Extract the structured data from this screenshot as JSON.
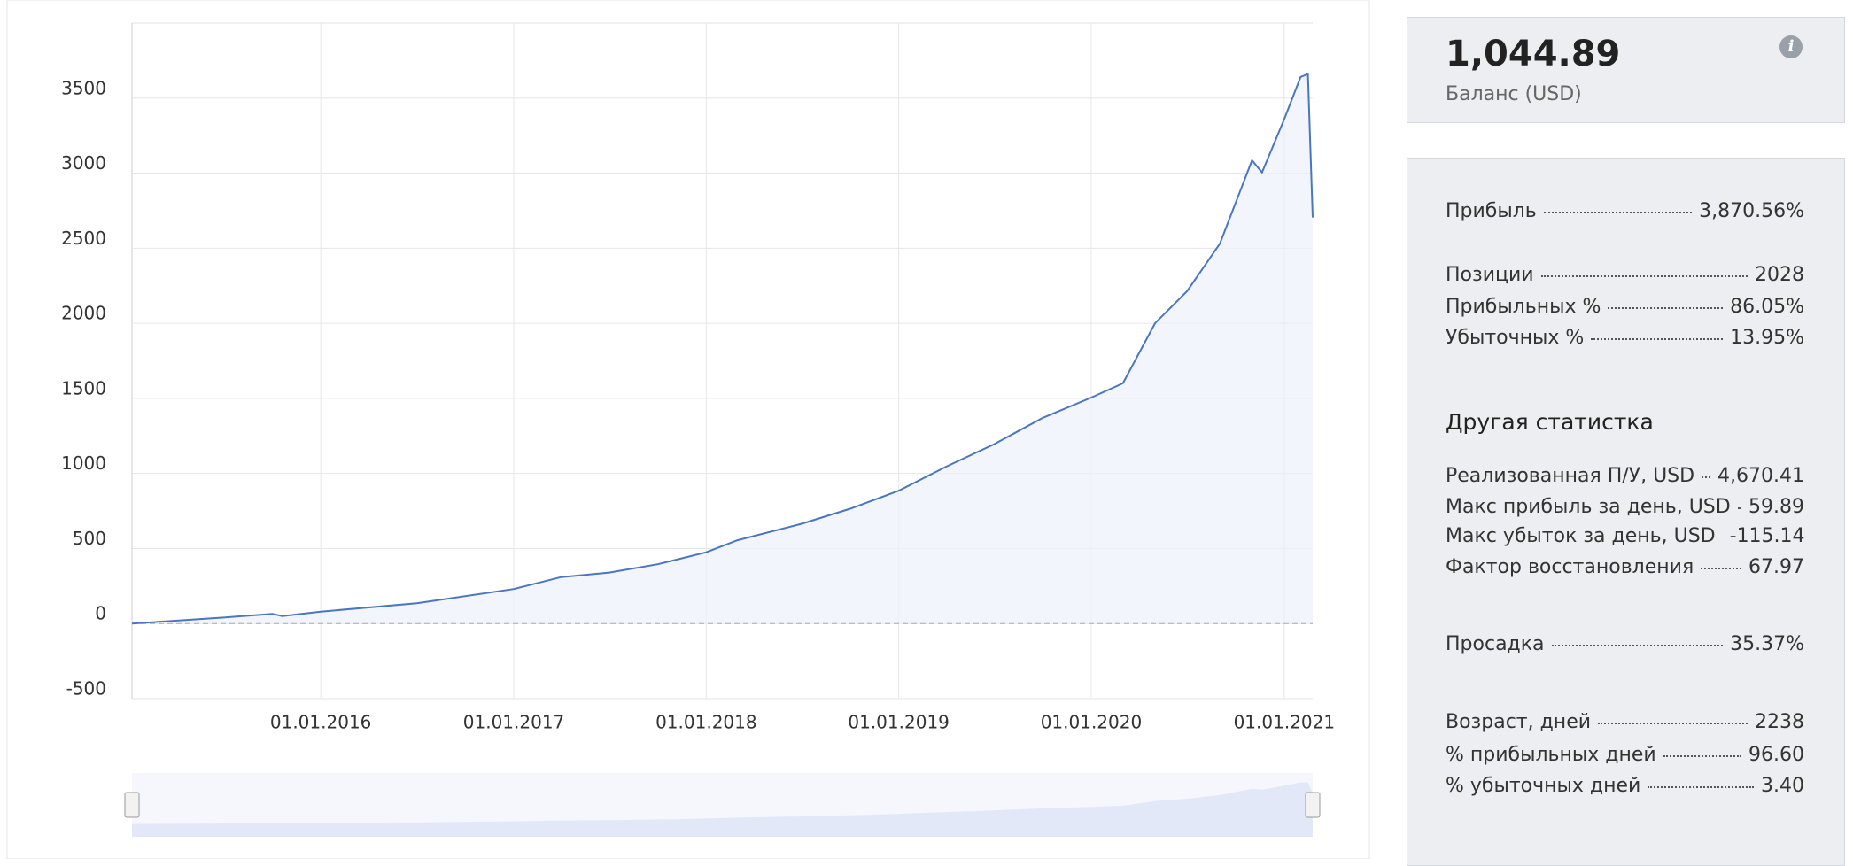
{
  "chart_data": {
    "type": "line",
    "color": "#4a76c0",
    "x": [
      "2015-01-08",
      "2015-07-01",
      "2015-10-01",
      "2015-10-20",
      "2016-01-01",
      "2016-07-01",
      "2017-01-01",
      "2017-04-01",
      "2017-07-01",
      "2017-10-01",
      "2018-01-01",
      "2018-03-01",
      "2018-07-01",
      "2018-10-01",
      "2019-01-01",
      "2019-04-01",
      "2019-07-01",
      "2019-10-01",
      "2020-01-01",
      "2020-03-01",
      "2020-05-01",
      "2020-07-01",
      "2020-09-01",
      "2020-11-01",
      "2020-11-20",
      "2021-01-01",
      "2021-02-01",
      "2021-02-15",
      "2021-02-24"
    ],
    "values": [
      0,
      40,
      65,
      50,
      80,
      135,
      230,
      310,
      340,
      395,
      475,
      555,
      665,
      765,
      885,
      1045,
      1195,
      1370,
      1505,
      1600,
      2000,
      2215,
      2530,
      3085,
      3005,
      3360,
      3640,
      3660,
      2705
    ],
    "xlim": [
      "2015-01-08",
      "2021-02-24"
    ],
    "xticks": [
      {
        "value": "2016-01-01",
        "label": "01.01.2016"
      },
      {
        "value": "2017-01-01",
        "label": "01.01.2017"
      },
      {
        "value": "2018-01-01",
        "label": "01.01.2018"
      },
      {
        "value": "2019-01-01",
        "label": "01.01.2019"
      },
      {
        "value": "2020-01-01",
        "label": "01.01.2020"
      },
      {
        "value": "2021-01-01",
        "label": "01.01.2021"
      }
    ],
    "ylim": [
      -500,
      4000
    ],
    "yticks": [
      -500,
      0,
      500,
      1000,
      1500,
      2000,
      2500,
      3000,
      3500
    ],
    "grid": true
  },
  "balance": {
    "value": "1,044.89",
    "label": "Баланс (USD)"
  },
  "stats": {
    "profit": {
      "label": "Прибыль",
      "value": "3,870.56%"
    },
    "positions": [
      {
        "label": "Позиции",
        "value": "2028"
      },
      {
        "label": "Прибыльных %",
        "value": "86.05%"
      },
      {
        "label": "Убыточных %",
        "value": "13.95%"
      }
    ],
    "other_title": "Другая статистка",
    "other": [
      {
        "label": "Реализованная П/У, USD",
        "value": "4,670.41"
      },
      {
        "label": "Макс прибыль за день, USD",
        "value": "59.89"
      },
      {
        "label": "Макс убыток за день, USD",
        "value": "-115.14"
      },
      {
        "label": "Фактор восстановления",
        "value": "67.97"
      }
    ],
    "drawdown": {
      "label": "Просадка",
      "value": "35.37%"
    },
    "age": [
      {
        "label": "Возраст, дней",
        "value": "2238"
      },
      {
        "label": "% прибыльных дней",
        "value": "96.60"
      },
      {
        "label": "% убыточных дней",
        "value": "3.40"
      }
    ]
  }
}
